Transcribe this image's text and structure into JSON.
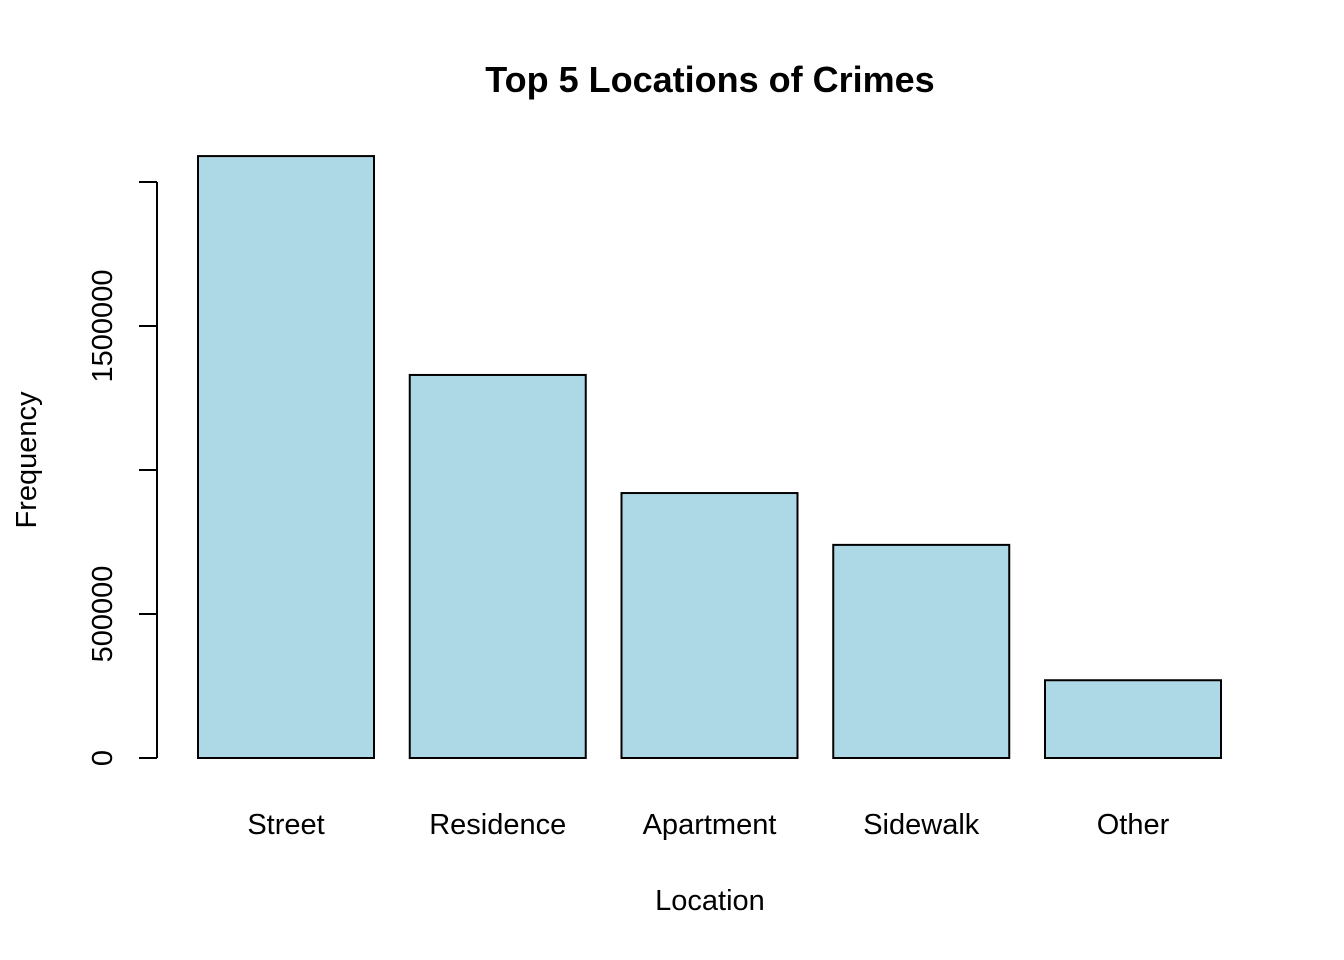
{
  "chart_data": {
    "type": "bar",
    "title": "Top 5 Locations of Crimes",
    "xlabel": "Location",
    "ylabel": "Frequency",
    "categories": [
      "Street",
      "Residence",
      "Apartment",
      "Sidewalk",
      "Other"
    ],
    "values": [
      2090000,
      1330000,
      920000,
      740000,
      270000
    ],
    "ylim": [
      0,
      2000000
    ],
    "y_ticks": [
      0,
      500000,
      1000000,
      1500000,
      2000000
    ],
    "y_tick_labels": [
      "0",
      "500000",
      "",
      "1500000",
      ""
    ],
    "bar_fill": "#add8e6",
    "bar_stroke": "#000000",
    "grid": false
  }
}
